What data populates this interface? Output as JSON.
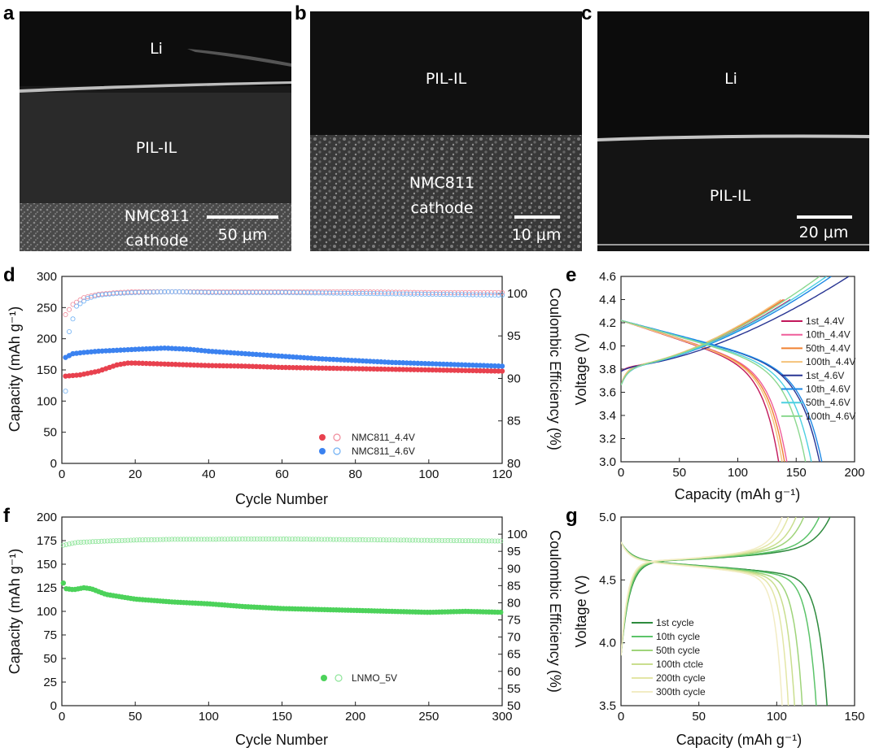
{
  "sem_images": [
    {
      "letter": "a",
      "labels": [
        "Li",
        "PIL-IL",
        "NMC811",
        "cathode"
      ],
      "scale_bar": "50 μm"
    },
    {
      "letter": "b",
      "labels": [
        "PIL-IL",
        "NMC811",
        "cathode"
      ],
      "scale_bar": "10 μm"
    },
    {
      "letter": "c",
      "labels": [
        "Li",
        "PIL-IL"
      ],
      "scale_bar": "20 μm"
    }
  ],
  "chart_data": [
    {
      "panel": "d",
      "type": "scatter",
      "xlabel": "Cycle Number",
      "ylabel": "Capacity (mAh g⁻¹)",
      "y2label": "Coulombic Efficiency (%)",
      "xlim": [
        0,
        120
      ],
      "ylim": [
        0,
        300
      ],
      "y2lim": [
        80,
        102
      ],
      "xticks": [
        0,
        20,
        40,
        60,
        80,
        100,
        120
      ],
      "yticks": [
        0,
        50,
        100,
        150,
        200,
        250,
        300
      ],
      "y2ticks": [
        80,
        85,
        90,
        95,
        100
      ],
      "legend_position": "bottom-center",
      "series": [
        {
          "name": "NMC811_4.4V",
          "axis": "capacity",
          "color": "#e8414e",
          "x": [
            1,
            5,
            10,
            15,
            18,
            20,
            30,
            40,
            50,
            60,
            70,
            80,
            90,
            100,
            110,
            120
          ],
          "y": [
            140,
            142,
            148,
            158,
            161,
            161,
            159,
            157,
            156,
            154,
            153,
            152,
            151,
            150,
            149,
            148
          ]
        },
        {
          "name": "NMC811_4.4V",
          "axis": "efficiency",
          "color": "#f08a9a",
          "x": [
            1,
            3,
            6,
            10,
            15,
            20,
            30,
            40,
            60,
            80,
            100,
            120
          ],
          "y": [
            97.5,
            98.7,
            99.5,
            99.9,
            100.1,
            100.2,
            100.2,
            100.2,
            100.2,
            100.2,
            100.1,
            100.1
          ]
        },
        {
          "name": "NMC811_4.6V",
          "axis": "capacity",
          "color": "#3b82f0",
          "x": [
            1,
            3,
            6,
            10,
            20,
            28,
            35,
            40,
            50,
            60,
            70,
            80,
            90,
            100,
            110,
            120
          ],
          "y": [
            170,
            176,
            178,
            180,
            183,
            185,
            183,
            180,
            176,
            172,
            168,
            165,
            162,
            160,
            158,
            156
          ]
        },
        {
          "name": "NMC811_4.6V",
          "axis": "efficiency",
          "color": "#6fb0f4",
          "x": [
            1,
            2,
            4,
            7,
            10,
            15,
            20,
            30,
            40,
            60,
            80,
            100,
            120
          ],
          "y": [
            88.5,
            95.5,
            98.5,
            99.4,
            99.8,
            100.0,
            100.1,
            100.2,
            100.1,
            100.1,
            100.0,
            99.9,
            99.8
          ]
        }
      ]
    },
    {
      "panel": "e",
      "type": "line",
      "xlabel": "Capacity (mAh g⁻¹)",
      "ylabel": "Voltage (V)",
      "xlim": [
        0,
        200
      ],
      "ylim": [
        3.0,
        4.6
      ],
      "xticks": [
        0,
        50,
        100,
        150,
        200
      ],
      "yticks": [
        3.0,
        3.2,
        3.4,
        3.6,
        3.8,
        4.0,
        4.2,
        4.4,
        4.6
      ],
      "legend_position": "right",
      "series": [
        {
          "name": "1st_4.4V",
          "color": "#c2185b",
          "charge_cap": 145,
          "discharge_cap": 135,
          "vmax": 4.4,
          "ocv": 3.78
        },
        {
          "name": "10th_4.4V",
          "color": "#ef5d9a",
          "charge_cap": 140,
          "discharge_cap": 142,
          "vmax": 4.4,
          "ocv": 3.66
        },
        {
          "name": "50th_4.4V",
          "color": "#f08232",
          "charge_cap": 139,
          "discharge_cap": 140,
          "vmax": 4.4,
          "ocv": 3.66
        },
        {
          "name": "100th_4.4V",
          "color": "#f4c27a",
          "charge_cap": 137,
          "discharge_cap": 138,
          "vmax": 4.4,
          "ocv": 3.66
        },
        {
          "name": "1st_4.6V",
          "color": "#283593",
          "charge_cap": 195,
          "discharge_cap": 170,
          "vmax": 4.6,
          "ocv": 3.78
        },
        {
          "name": "10th_4.6V",
          "color": "#1e88e5",
          "charge_cap": 180,
          "discharge_cap": 172,
          "vmax": 4.6,
          "ocv": 3.66
        },
        {
          "name": "50th_4.6V",
          "color": "#4dd0e1",
          "charge_cap": 176,
          "discharge_cap": 163,
          "vmax": 4.6,
          "ocv": 3.66
        },
        {
          "name": "100th_4.6V",
          "color": "#8bd88f",
          "charge_cap": 170,
          "discharge_cap": 158,
          "vmax": 4.6,
          "ocv": 3.66
        }
      ]
    },
    {
      "panel": "f",
      "type": "scatter",
      "xlabel": "Cycle Number",
      "ylabel": "Capacity (mAh g⁻¹)",
      "y2label": "Coulombic Efficiency (%)",
      "xlim": [
        0,
        300
      ],
      "ylim": [
        0,
        200
      ],
      "y2lim": [
        50,
        105
      ],
      "xticks": [
        0,
        50,
        100,
        150,
        200,
        250,
        300
      ],
      "yticks": [
        0,
        25,
        50,
        75,
        100,
        125,
        150,
        175,
        200
      ],
      "y2ticks": [
        50,
        55,
        60,
        65,
        70,
        75,
        80,
        85,
        90,
        95,
        100
      ],
      "legend_position": "bottom-center",
      "series": [
        {
          "name": "LNMO_5V",
          "axis": "capacity",
          "color": "#4cd25a",
          "x": [
            1,
            3,
            8,
            15,
            20,
            30,
            50,
            75,
            100,
            125,
            150,
            175,
            200,
            225,
            250,
            275,
            300
          ],
          "y": [
            130,
            124,
            123,
            125,
            124,
            118,
            113,
            110,
            108,
            105,
            103,
            102,
            101,
            100,
            99,
            100,
            99
          ]
        },
        {
          "name": "LNMO_5V",
          "axis": "efficiency",
          "color": "#8fe59a",
          "x": [
            1,
            10,
            30,
            50,
            75,
            100,
            125,
            150,
            175,
            200,
            225,
            250,
            275,
            300
          ],
          "y": [
            96.8,
            97.6,
            98.0,
            98.3,
            98.5,
            98.5,
            98.6,
            98.6,
            98.5,
            98.4,
            98.3,
            98.2,
            98.1,
            98.0
          ]
        }
      ]
    },
    {
      "panel": "g",
      "type": "line",
      "xlabel": "Capacity (mAh g⁻¹)",
      "ylabel": "Voltage (V)",
      "xlim": [
        0,
        150
      ],
      "ylim": [
        3.5,
        5.0
      ],
      "xticks": [
        0,
        50,
        100,
        150
      ],
      "yticks": [
        3.5,
        4.0,
        4.5,
        5.0
      ],
      "legend_position": "bottom-left",
      "series": [
        {
          "name": "1st cycle",
          "color": "#2e8b3e",
          "charge_cap": 135,
          "discharge_cap": 133
        },
        {
          "name": "10th cycle",
          "color": "#5cc46a",
          "charge_cap": 128,
          "discharge_cap": 126
        },
        {
          "name": "50th cycle",
          "color": "#9fd47a",
          "charge_cap": 118,
          "discharge_cap": 117
        },
        {
          "name": "100th ctcle",
          "color": "#c9de8e",
          "charge_cap": 113,
          "discharge_cap": 112
        },
        {
          "name": "200th cycle",
          "color": "#e3e6a6",
          "charge_cap": 108,
          "discharge_cap": 108
        },
        {
          "name": "300th cycle",
          "color": "#f2ecc4",
          "charge_cap": 104,
          "discharge_cap": 104
        }
      ]
    }
  ]
}
